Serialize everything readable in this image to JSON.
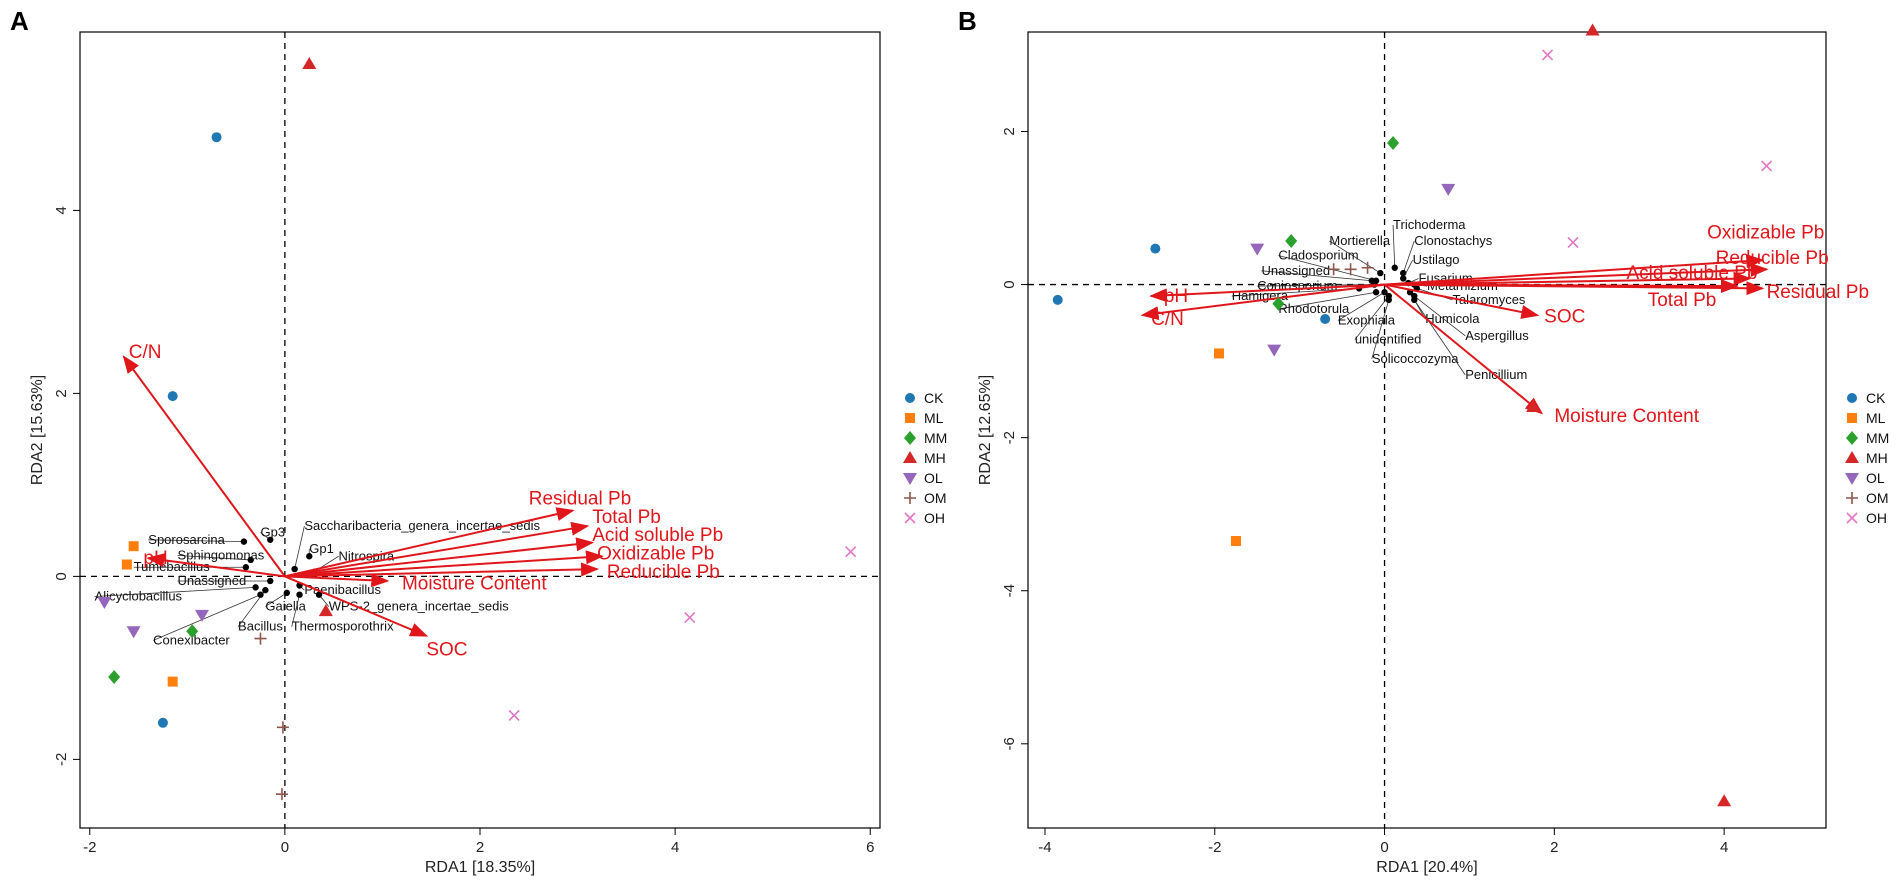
{
  "figure": {
    "panels": [
      "A",
      "B"
    ],
    "legend_title": "",
    "group_colors": {
      "CK": "#1f77b4",
      "ML": "#ff7f0e",
      "MM": "#2ca02c",
      "MH": "#d62728",
      "OL": "#9467bd",
      "OM": "#8c564b",
      "OH": "#e377c2"
    },
    "arrow_color": "#e0161b"
  },
  "chart_data": [
    {
      "type": "scatter",
      "panel": "A",
      "title": "",
      "xlabel": "RDA1  [18.35%]",
      "ylabel": "RDA2  [15.63%]",
      "xlim": [
        -2.1,
        6.1
      ],
      "ylim": [
        -2.75,
        5.95
      ],
      "xticks": [
        -2,
        0,
        2,
        4,
        6
      ],
      "yticks": [
        -2,
        0,
        2,
        4
      ],
      "legend": [
        "CK",
        "ML",
        "MM",
        "MH",
        "OL",
        "OM",
        "OH"
      ],
      "series": [
        {
          "name": "CK",
          "marker": "circle",
          "points": [
            [
              -0.7,
              4.8
            ],
            [
              -1.15,
              1.97
            ],
            [
              -1.25,
              -1.6
            ]
          ]
        },
        {
          "name": "ML",
          "marker": "square",
          "points": [
            [
              -1.55,
              0.33
            ],
            [
              -1.62,
              0.13
            ],
            [
              -1.15,
              -1.15
            ]
          ]
        },
        {
          "name": "MM",
          "marker": "diamond",
          "points": [
            [
              -1.75,
              -1.1
            ],
            [
              -0.95,
              -0.6
            ]
          ]
        },
        {
          "name": "MH",
          "marker": "triangle-up",
          "points": [
            [
              0.25,
              5.6
            ],
            [
              0.42,
              -0.38
            ]
          ]
        },
        {
          "name": "OL",
          "marker": "triangle-down",
          "points": [
            [
              -1.85,
              -0.28
            ],
            [
              -1.55,
              -0.6
            ],
            [
              -0.85,
              -0.42
            ]
          ]
        },
        {
          "name": "OM",
          "marker": "plus",
          "points": [
            [
              -0.25,
              -0.68
            ],
            [
              -0.02,
              -1.65
            ],
            [
              -0.03,
              -2.38
            ]
          ]
        },
        {
          "name": "OH",
          "marker": "cross",
          "points": [
            [
              5.8,
              0.27
            ],
            [
              4.15,
              -0.45
            ],
            [
              2.35,
              -1.52
            ]
          ]
        }
      ],
      "arrows": [
        {
          "label": "C/N",
          "x": -1.65,
          "y": 2.4,
          "lx": -1.6,
          "ly": 2.45
        },
        {
          "label": "pH",
          "x": -1.4,
          "y": 0.2,
          "lx": -1.45,
          "ly": 0.2
        },
        {
          "label": "Residual Pb",
          "x": 2.95,
          "y": 0.72,
          "lx": 2.5,
          "ly": 0.85
        },
        {
          "label": "Total Pb",
          "x": 3.1,
          "y": 0.55,
          "lx": 3.15,
          "ly": 0.65
        },
        {
          "label": "Acid soluble Pb",
          "x": 3.15,
          "y": 0.37,
          "lx": 3.15,
          "ly": 0.45
        },
        {
          "label": "Oxidizable Pb",
          "x": 3.25,
          "y": 0.22,
          "lx": 3.2,
          "ly": 0.25
        },
        {
          "label": "Reducible Pb",
          "x": 3.2,
          "y": 0.08,
          "lx": 3.3,
          "ly": 0.05
        },
        {
          "label": "Moisture Content",
          "x": 1.05,
          "y": -0.05,
          "lx": 1.2,
          "ly": -0.08
        },
        {
          "label": "SOC",
          "x": 1.45,
          "y": -0.65,
          "lx": 1.45,
          "ly": -0.8
        }
      ],
      "taxa": [
        {
          "label": "Sporosarcina",
          "x": -0.42,
          "y": 0.38,
          "lx": -1.4,
          "ly": 0.4
        },
        {
          "label": "Gp3",
          "x": -0.15,
          "y": 0.4,
          "lx": -0.25,
          "ly": 0.48
        },
        {
          "label": "Saccharibacteria_genera_incertae_sedis",
          "x": 0.1,
          "y": 0.08,
          "lx": 0.2,
          "ly": 0.55
        },
        {
          "label": "Sphingomonas",
          "x": -0.35,
          "y": 0.18,
          "lx": -1.1,
          "ly": 0.23
        },
        {
          "label": "Gp1",
          "x": 0.25,
          "y": 0.22,
          "lx": 0.25,
          "ly": 0.3
        },
        {
          "label": "Nitrospira",
          "x": 0.3,
          "y": 0.05,
          "lx": 0.55,
          "ly": 0.22
        },
        {
          "label": "Tumebacillus",
          "x": -0.4,
          "y": 0.1,
          "lx": -1.55,
          "ly": 0.1
        },
        {
          "label": "Unassigned",
          "x": -0.15,
          "y": -0.05,
          "lx": -1.1,
          "ly": -0.05
        },
        {
          "label": "Alicyclobacillus",
          "x": -0.3,
          "y": -0.12,
          "lx": -1.95,
          "ly": -0.22
        },
        {
          "label": "Paenibacillus",
          "x": 0.15,
          "y": -0.1,
          "lx": 0.2,
          "ly": -0.15
        },
        {
          "label": "WPS-2_genera_incertae_sedis",
          "x": 0.35,
          "y": -0.2,
          "lx": 0.45,
          "ly": -0.33
        },
        {
          "label": "Gaiella",
          "x": 0.02,
          "y": -0.18,
          "lx": -0.2,
          "ly": -0.33
        },
        {
          "label": "Bacillus",
          "x": -0.2,
          "y": -0.15,
          "lx": -0.48,
          "ly": -0.55
        },
        {
          "label": "Thermosporothrix",
          "x": 0.15,
          "y": -0.2,
          "lx": 0.07,
          "ly": -0.55
        },
        {
          "label": "Conexibacter",
          "x": -0.25,
          "y": -0.2,
          "lx": -1.35,
          "ly": -0.7
        }
      ]
    },
    {
      "type": "scatter",
      "panel": "B",
      "title": "",
      "xlabel": "RDA1  [20.4%]",
      "ylabel": "RDA2  [12.65%]",
      "xlim": [
        -4.2,
        5.2
      ],
      "ylim": [
        -7.1,
        3.3
      ],
      "xticks": [
        -4,
        -2,
        0,
        2,
        4
      ],
      "yticks": [
        -6,
        -4,
        -2,
        0,
        2
      ],
      "legend": [
        "CK",
        "ML",
        "MM",
        "MH",
        "OL",
        "OM",
        "OH"
      ],
      "series": [
        {
          "name": "CK",
          "marker": "circle",
          "points": [
            [
              -3.85,
              -0.2
            ],
            [
              -2.7,
              0.47
            ],
            [
              -0.7,
              -0.45
            ]
          ]
        },
        {
          "name": "ML",
          "marker": "square",
          "points": [
            [
              -1.95,
              -0.9
            ],
            [
              -1.75,
              -3.35
            ]
          ]
        },
        {
          "name": "MM",
          "marker": "diamond",
          "points": [
            [
              0.1,
              1.85
            ],
            [
              -1.1,
              0.57
            ],
            [
              -1.25,
              -0.25
            ]
          ]
        },
        {
          "name": "MH",
          "marker": "triangle-up",
          "points": [
            [
              2.45,
              3.32
            ],
            [
              1.75,
              -1.6
            ],
            [
              4.0,
              -6.75
            ]
          ]
        },
        {
          "name": "OL",
          "marker": "triangle-down",
          "points": [
            [
              0.75,
              1.25
            ],
            [
              -1.5,
              0.47
            ],
            [
              -1.3,
              -0.85
            ]
          ]
        },
        {
          "name": "OM",
          "marker": "plus",
          "points": [
            [
              -0.4,
              0.2
            ],
            [
              -0.2,
              0.22
            ],
            [
              -0.6,
              0.2
            ]
          ]
        },
        {
          "name": "OH",
          "marker": "cross",
          "points": [
            [
              1.92,
              3.0
            ],
            [
              4.5,
              1.55
            ],
            [
              2.22,
              0.55
            ]
          ]
        }
      ],
      "arrows": [
        {
          "label": "pH",
          "x": -2.75,
          "y": -0.15,
          "lx": -2.6,
          "ly": -0.15
        },
        {
          "label": "C/N",
          "x": -2.85,
          "y": -0.4,
          "lx": -2.75,
          "ly": -0.45
        },
        {
          "label": "Oxidizable Pb",
          "x": 4.45,
          "y": 0.32,
          "lx": 3.8,
          "ly": 0.68
        },
        {
          "label": "Reducible Pb",
          "x": 4.5,
          "y": 0.2,
          "lx": 3.9,
          "ly": 0.35
        },
        {
          "label": "Acid soluble Pb",
          "x": 4.3,
          "y": 0.08,
          "lx": 2.85,
          "ly": 0.15
        },
        {
          "label": "Residual Pb",
          "x": 4.45,
          "y": -0.05,
          "lx": 4.5,
          "ly": -0.1
        },
        {
          "label": "Total Pb",
          "x": 4.15,
          "y": -0.02,
          "lx": 3.1,
          "ly": -0.2
        },
        {
          "label": "SOC",
          "x": 1.8,
          "y": -0.4,
          "lx": 1.88,
          "ly": -0.42
        },
        {
          "label": "Moisture Content",
          "x": 1.85,
          "y": -1.68,
          "lx": 2.0,
          "ly": -1.72
        }
      ],
      "taxa": [
        {
          "label": "Trichoderma",
          "x": 0.12,
          "y": 0.22,
          "lx": 0.1,
          "ly": 0.78
        },
        {
          "label": "Mortierella",
          "x": -0.05,
          "y": 0.15,
          "lx": -0.65,
          "ly": 0.57
        },
        {
          "label": "Clonostachys",
          "x": 0.22,
          "y": 0.15,
          "lx": 0.35,
          "ly": 0.57
        },
        {
          "label": "Cladosporium",
          "x": -0.1,
          "y": 0.05,
          "lx": -1.25,
          "ly": 0.38
        },
        {
          "label": "Ustilago",
          "x": 0.22,
          "y": 0.08,
          "lx": 0.33,
          "ly": 0.32
        },
        {
          "label": "Unassigned",
          "x": -0.15,
          "y": 0.05,
          "lx": -1.45,
          "ly": 0.18
        },
        {
          "label": "Fusarium",
          "x": 0.28,
          "y": 0.02,
          "lx": 0.4,
          "ly": 0.08
        },
        {
          "label": "Coniosporium",
          "x": -0.12,
          "y": 0.0,
          "lx": -1.5,
          "ly": -0.02
        },
        {
          "label": "Metarhizium",
          "x": 0.35,
          "y": 0.0,
          "lx": 0.5,
          "ly": -0.02
        },
        {
          "label": "Hamigera",
          "x": -0.3,
          "y": -0.05,
          "lx": -1.8,
          "ly": -0.15
        },
        {
          "label": "Talaromyces",
          "x": 0.38,
          "y": -0.05,
          "lx": 0.8,
          "ly": -0.2
        },
        {
          "label": "Rhodotorula",
          "x": -0.1,
          "y": -0.1,
          "lx": -1.25,
          "ly": -0.32
        },
        {
          "label": "Exophiala",
          "x": 0.0,
          "y": -0.1,
          "lx": -0.55,
          "ly": -0.47
        },
        {
          "label": "Humicola",
          "x": 0.3,
          "y": -0.1,
          "lx": 0.48,
          "ly": -0.45
        },
        {
          "label": "unidentified",
          "x": 0.05,
          "y": -0.15,
          "lx": -0.35,
          "ly": -0.72
        },
        {
          "label": "Aspergillus",
          "x": 0.35,
          "y": -0.15,
          "lx": 0.95,
          "ly": -0.67
        },
        {
          "label": "Solicoccozyma",
          "x": 0.05,
          "y": -0.2,
          "lx": -0.15,
          "ly": -0.97
        },
        {
          "label": "Penicillium",
          "x": 0.35,
          "y": -0.2,
          "lx": 0.95,
          "ly": -1.18
        }
      ]
    }
  ]
}
